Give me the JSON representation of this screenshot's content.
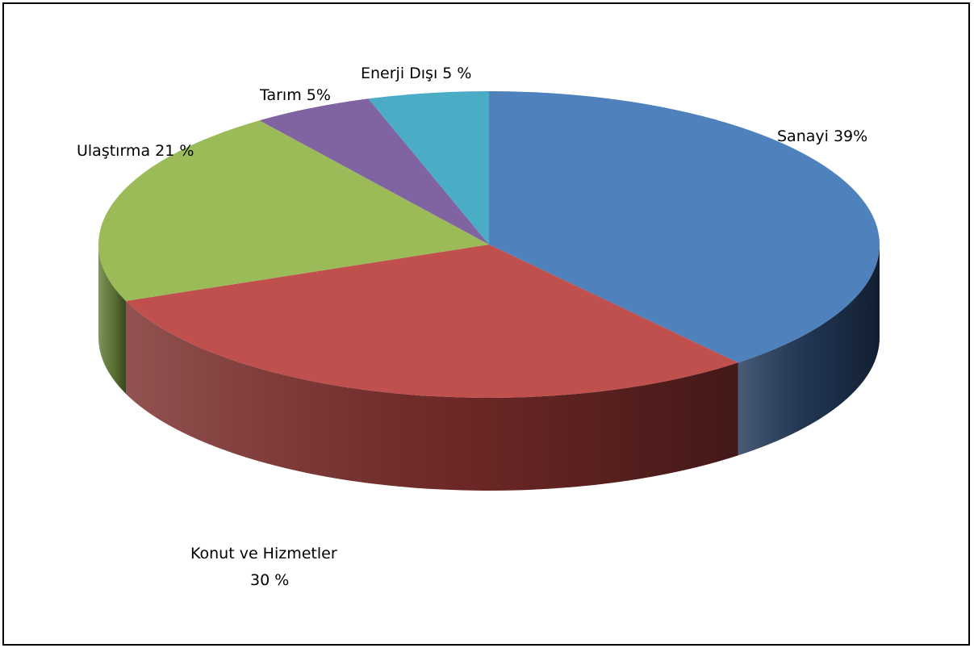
{
  "chart_data": {
    "type": "pie",
    "style": "3d",
    "title": "",
    "legend": "none",
    "slices": [
      {
        "name": "Sanayi",
        "value": 39,
        "label": "Sanayi 39%",
        "color": "#4F81BD",
        "side_color": "#22395A"
      },
      {
        "name": "Konut ve Hizmetler",
        "value": 30,
        "label": "Konut ve Hizmetler",
        "label2": "30 %",
        "color": "#C0504D",
        "side_color": "#7B2D2B"
      },
      {
        "name": "Ulaştırma",
        "value": 21,
        "label": "Ulaştırma 21 %",
        "color": "#9BBB59",
        "side_color": "#66803A"
      },
      {
        "name": "Tarım",
        "value": 5,
        "label": "Tarım 5%",
        "color": "#8064A2",
        "side_color": "#4E3C66"
      },
      {
        "name": "Enerji Dışı",
        "value": 5,
        "label": "Enerji Dışı 5 %",
        "color": "#4BACC6",
        "side_color": "#2B6F82"
      }
    ]
  }
}
